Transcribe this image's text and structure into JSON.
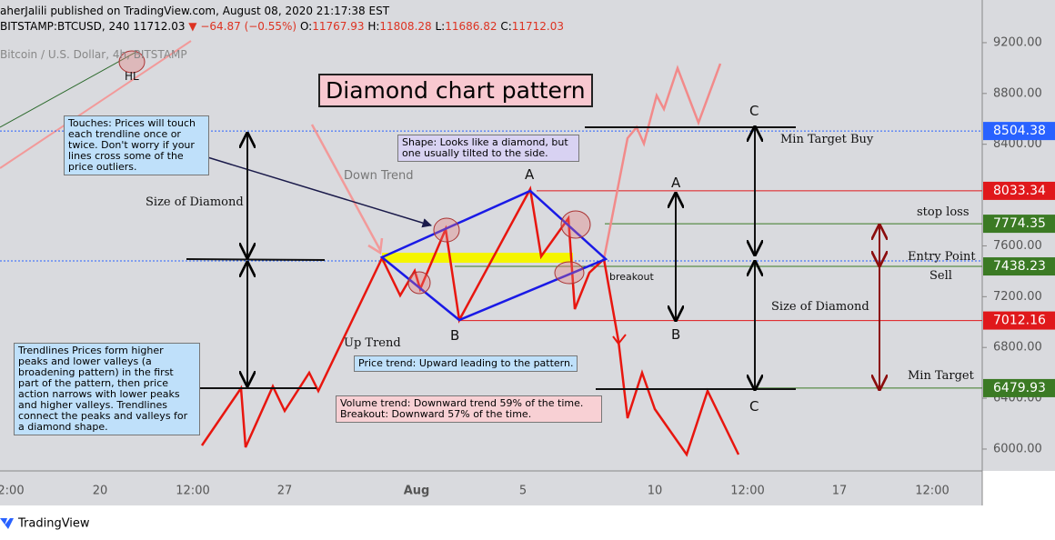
{
  "header": {
    "publisher": "aherJalili published on TradingView.com, August 08, 2020 21:17:38 EST",
    "symbol": "BITSTAMP:BTCUSD, 240",
    "last": "11712.03",
    "change": "▼ −64.87 (−0.55%)",
    "ohlc": [
      "O:",
      "11767.93",
      "H:",
      "11808.28",
      "L:",
      "11686.82",
      "C:",
      "11712.03"
    ]
  },
  "chart_data": {
    "type": "line",
    "title": "Diamond chart pattern",
    "watermark": "Bitcoin / U.S. Dollar, 4h, BITSTAMP",
    "ylim": [
      5828,
      9536
    ],
    "yticks": [
      {
        "value": 9200,
        "label": "9200.00"
      },
      {
        "value": 8800,
        "label": "8800.00"
      },
      {
        "value": 8400,
        "label": "8400.00"
      },
      {
        "value": 7600,
        "label": "7600.00"
      },
      {
        "value": 7200,
        "label": "7200.00"
      },
      {
        "value": 6800,
        "label": "6800.00"
      },
      {
        "value": 6400,
        "label": "6400.00"
      },
      {
        "value": 6000,
        "label": "6000.00"
      }
    ],
    "x_labels": [
      "2:00",
      "20",
      "12:00",
      "27",
      "Aug",
      "5",
      "10",
      "12:00",
      "17",
      "12:00"
    ],
    "price_tags": [
      {
        "value": 8504.38,
        "color": "#2962ff"
      },
      {
        "value": 8033.34,
        "color": "#e0181b"
      },
      {
        "value": 7774.35,
        "color": "#3b7a24"
      },
      {
        "value": 7438.23,
        "color": "#3b7a24"
      },
      {
        "value": 7012.16,
        "color": "#e0181b"
      },
      {
        "value": 6479.93,
        "color": "#3b7a24"
      }
    ],
    "annotations": [
      "Touches: Prices will touch each trendline once or twice. Don't worry if your lines cross some of the price outliers.",
      "Shape: Looks like a diamond, but one usually tilted to the side.",
      "Down Trend",
      "Size of Diamond",
      "A",
      "B",
      "Up Trend",
      "Price trend: Upward leading to the pattern.",
      "Trendlines Prices form higher peaks and lower valleys (a broadening pattern) in the first part of the pattern, then price action narrows with lower peaks and higher valleys. Trendlines connect the peaks and valleys for a diamond shape.",
      "Volume trend: Downward trend 59% of the time.\nBreakout: Downward 57% of the time.",
      "breakout",
      "A",
      "B",
      "C",
      "C",
      "Min Target Buy",
      "Size of Diamond",
      "stop loss",
      "Entry Point",
      "Sell",
      "Min Target",
      "HL"
    ]
  },
  "footer": {
    "brand": "TradingView"
  }
}
